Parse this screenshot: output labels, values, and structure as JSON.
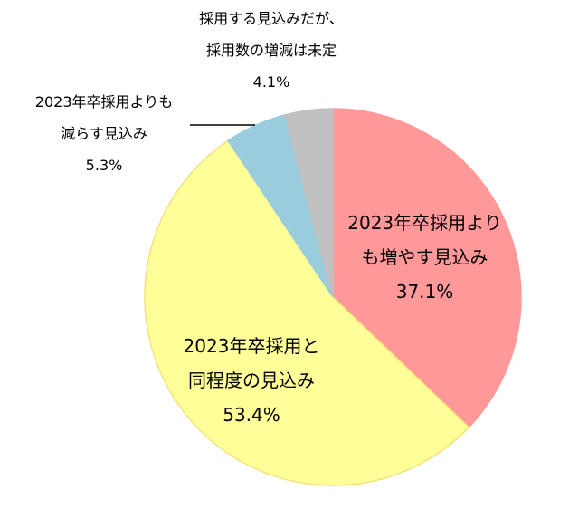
{
  "chart_data": {
    "type": "pie",
    "start": "12 o'clock",
    "direction": "clockwise",
    "slices": [
      {
        "lines": [
          "2023年卒採用より",
          "も増やす見込み"
        ],
        "pct_label": "37.1%",
        "value": 37.1,
        "color": "#FF9999",
        "stroke": "#FF9999"
      },
      {
        "lines": [
          "2023年卒採用と",
          "同程度の見込み"
        ],
        "pct_label": "53.4%",
        "value": 53.4,
        "color": "#FFFF99",
        "stroke": "#F2E27A"
      },
      {
        "lines": [
          "2023年卒採用よりも",
          "減らす見込み"
        ],
        "pct_label": "5.3%",
        "value": 5.3,
        "color": "#99CCDD",
        "stroke": "#99CCDD"
      },
      {
        "lines": [
          "採用する見込みだが、",
          "採用数の増減は未定"
        ],
        "pct_label": "4.1%",
        "value": 4.1,
        "color": "#C0C0C0",
        "stroke": "#C0C0C0"
      }
    ]
  }
}
